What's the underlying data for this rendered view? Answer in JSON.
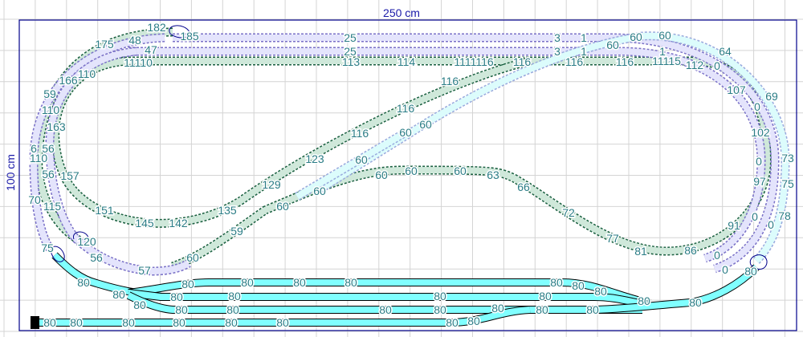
{
  "dimensions": {
    "width_label": "250 cm",
    "height_label": "100 cm"
  },
  "colors": {
    "grid": "#d4d4d4",
    "border": "#00008b",
    "track_green": "#cfe8da",
    "track_green_edge": "#1a6040",
    "track_lavender": "#e4e4fc",
    "track_lavender_edge": "#7b72c8",
    "track_lightcyan": "#dcfcfc",
    "track_lightcyan_edge": "#9ad",
    "track_cyan": "#80ffff",
    "track_cyan_edge": "#000000",
    "label": "#2b7d86"
  },
  "height_labels": [
    "182",
    "185",
    "48",
    "175",
    "47",
    "11110",
    "166",
    "110",
    "59",
    "110",
    "163",
    "6",
    "56",
    "110",
    "56",
    "157",
    "70",
    "115",
    "151",
    "145",
    "142",
    "135",
    "129",
    "123",
    "116",
    "116",
    "116",
    "120",
    "75",
    "56",
    "57",
    "60",
    "59",
    "60",
    "60",
    "60",
    "60",
    "60",
    "60",
    "60",
    "60",
    "63",
    "66",
    "72",
    "77",
    "81",
    "86",
    "91",
    "97",
    "0",
    "102",
    "0",
    "107",
    "0",
    "112",
    "11115",
    "116",
    "116",
    "116",
    "1111116",
    "114",
    "113",
    "25",
    "25",
    "3",
    "3",
    "1",
    "1",
    "1",
    "60",
    "60",
    "60",
    "64",
    "69",
    "73",
    "75",
    "78",
    "0",
    "0",
    "0",
    "0",
    "80",
    "80",
    "80",
    "80",
    "80",
    "80",
    "80",
    "80",
    "80",
    "80",
    "80",
    "80",
    "80",
    "80",
    "80",
    "80",
    "80",
    "80",
    "80",
    "80",
    "80",
    "80",
    "80",
    "80",
    "80",
    "80",
    "80",
    "80",
    "80",
    "80",
    "80",
    "80"
  ]
}
